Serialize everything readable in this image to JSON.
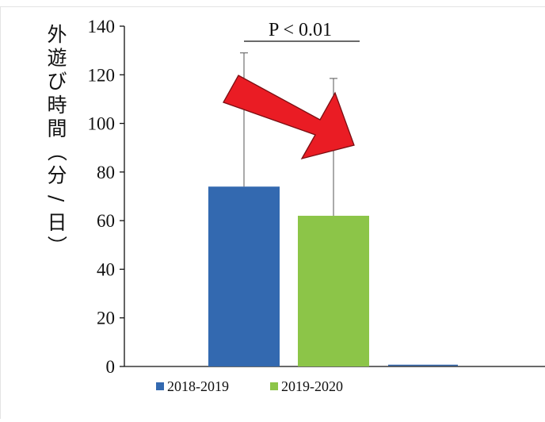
{
  "chart_data": {
    "type": "bar",
    "ylabel": "外遊び時間（分/日）",
    "ylim": [
      0,
      140
    ],
    "yticks": [
      0,
      20,
      40,
      60,
      80,
      100,
      120,
      140
    ],
    "series": [
      {
        "name": "2018-2019",
        "value": 74,
        "error_upper": 129,
        "color": "#3369b0"
      },
      {
        "name": "2019-2020",
        "value": 62,
        "error_upper": 118.5,
        "color": "#8cc548"
      }
    ],
    "annotation": "P < 0.01",
    "arrow_color": "#ea1c24",
    "grid": false,
    "legend_position": "bottom"
  }
}
